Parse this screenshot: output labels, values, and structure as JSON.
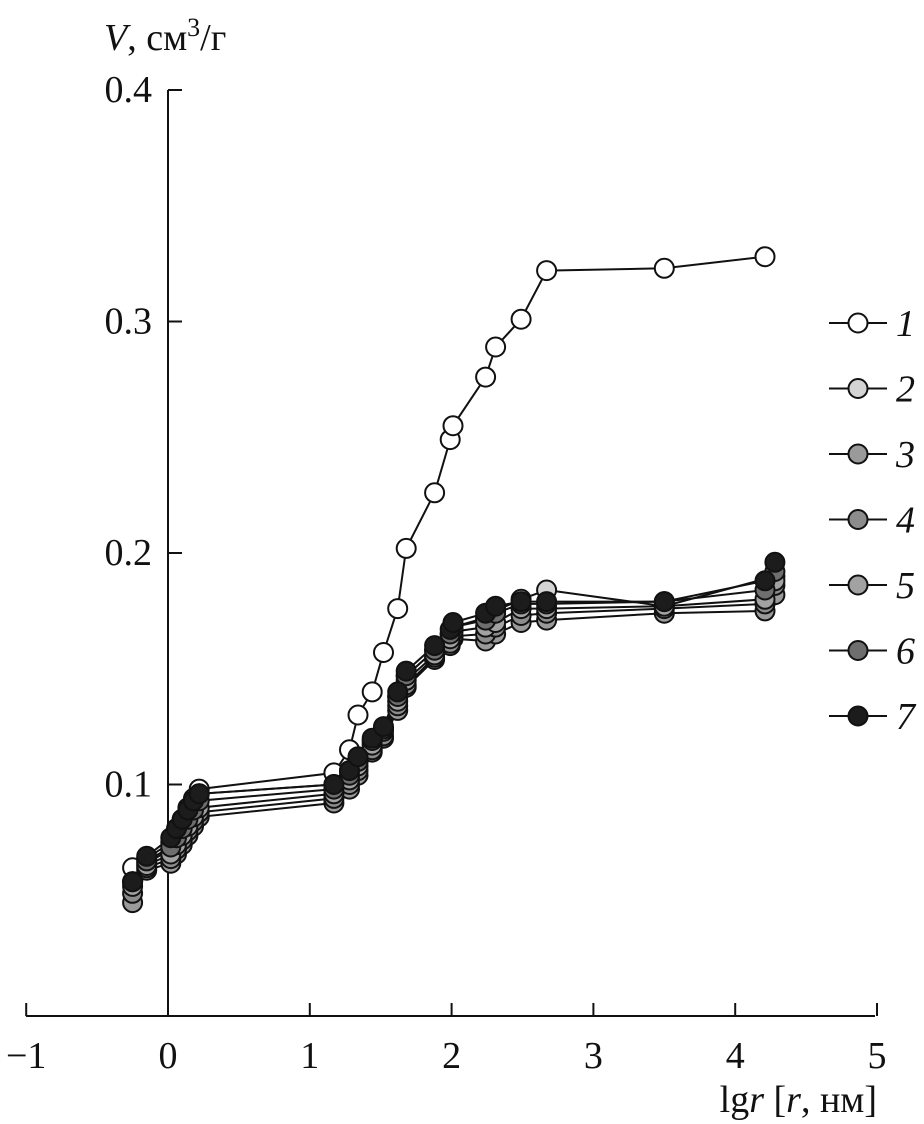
{
  "chart_data": {
    "type": "line",
    "y_axis_label": {
      "var": "V",
      "unit_prefix": ", см",
      "unit_exp": "3",
      "unit_suffix": "/г"
    },
    "x_axis_label": {
      "prefix": "lg",
      "var": "r",
      "bracket_open": " [",
      "var2": "r",
      "unit": ", нм]"
    },
    "xlim": [
      -1,
      5
    ],
    "ylim": [
      0.0,
      0.4
    ],
    "x_ticks": [
      -1,
      0,
      1,
      2,
      3,
      4,
      5
    ],
    "x_tick_labels": [
      "−1",
      "0",
      "1",
      "2",
      "3",
      "4",
      "5"
    ],
    "y_ticks": [
      0.1,
      0.2,
      0.3,
      0.4
    ],
    "y_tick_labels": [
      "0.1",
      "0.2",
      "0.3",
      "0.4"
    ],
    "legend_position": "right",
    "series": [
      {
        "name": "1",
        "fill": "#ffffff",
        "x": [
          -0.25,
          -0.15,
          0.02,
          0.06,
          0.1,
          0.14,
          0.18,
          0.22,
          1.17,
          1.28,
          1.34,
          1.44,
          1.52,
          1.62,
          1.68,
          1.88,
          1.99,
          2.01,
          2.24,
          2.31,
          2.49,
          2.67,
          3.5,
          4.21
        ],
        "y": [
          0.064,
          0.068,
          0.075,
          0.08,
          0.085,
          0.09,
          0.094,
          0.098,
          0.105,
          0.115,
          0.13,
          0.14,
          0.157,
          0.176,
          0.202,
          0.226,
          0.249,
          0.255,
          0.276,
          0.289,
          0.301,
          0.322,
          0.323,
          0.328
        ]
      },
      {
        "name": "2",
        "fill": "#d4d4d4",
        "x": [
          -0.25,
          -0.15,
          0.02,
          0.06,
          0.1,
          0.14,
          0.18,
          0.22,
          1.17,
          1.28,
          1.34,
          1.44,
          1.52,
          1.62,
          1.68,
          1.88,
          1.99,
          2.01,
          2.24,
          2.31,
          2.49,
          2.67,
          3.5,
          4.28
        ],
        "y": [
          0.058,
          0.066,
          0.072,
          0.078,
          0.083,
          0.088,
          0.092,
          0.096,
          0.1,
          0.106,
          0.11,
          0.118,
          0.124,
          0.138,
          0.147,
          0.158,
          0.165,
          0.168,
          0.172,
          0.175,
          0.18,
          0.184,
          0.177,
          0.19
        ]
      },
      {
        "name": "3",
        "fill": "#9a9a9a",
        "x": [
          -0.25,
          -0.15,
          0.02,
          0.06,
          0.1,
          0.14,
          0.18,
          0.22,
          1.17,
          1.28,
          1.34,
          1.44,
          1.52,
          1.62,
          1.68,
          1.88,
          1.99,
          2.01,
          2.24,
          2.31,
          2.49,
          2.67,
          3.5,
          4.21,
          4.28
        ],
        "y": [
          0.049,
          0.063,
          0.066,
          0.07,
          0.074,
          0.078,
          0.082,
          0.086,
          0.092,
          0.098,
          0.104,
          0.114,
          0.12,
          0.132,
          0.142,
          0.154,
          0.16,
          0.163,
          0.162,
          0.165,
          0.17,
          0.171,
          0.174,
          0.175,
          0.182
        ]
      },
      {
        "name": "4",
        "fill": "#8c8c8c",
        "x": [
          -0.25,
          -0.15,
          0.02,
          0.06,
          0.1,
          0.14,
          0.18,
          0.22,
          1.17,
          1.28,
          1.34,
          1.44,
          1.52,
          1.62,
          1.68,
          1.88,
          1.99,
          2.01,
          2.24,
          2.31,
          2.49,
          2.67,
          3.5,
          4.21,
          4.28
        ],
        "y": [
          0.053,
          0.064,
          0.068,
          0.072,
          0.076,
          0.08,
          0.084,
          0.088,
          0.094,
          0.1,
          0.106,
          0.115,
          0.121,
          0.134,
          0.143,
          0.155,
          0.161,
          0.164,
          0.165,
          0.168,
          0.173,
          0.174,
          0.176,
          0.178,
          0.186
        ]
      },
      {
        "name": "5",
        "fill": "#a2a2a2",
        "x": [
          -0.25,
          -0.15,
          0.02,
          0.06,
          0.1,
          0.14,
          0.18,
          0.22,
          1.17,
          1.28,
          1.34,
          1.44,
          1.52,
          1.62,
          1.68,
          1.88,
          1.99,
          2.01,
          2.24,
          2.31,
          2.49,
          2.67,
          3.5,
          4.21,
          4.28
        ],
        "y": [
          0.056,
          0.065,
          0.07,
          0.074,
          0.078,
          0.082,
          0.086,
          0.09,
          0.096,
          0.102,
          0.108,
          0.117,
          0.123,
          0.136,
          0.145,
          0.156,
          0.163,
          0.166,
          0.168,
          0.17,
          0.176,
          0.176,
          0.177,
          0.18,
          0.188
        ]
      },
      {
        "name": "6",
        "fill": "#6e6e6e",
        "x": [
          -0.25,
          -0.15,
          0.02,
          0.06,
          0.1,
          0.14,
          0.18,
          0.22,
          1.17,
          1.28,
          1.34,
          1.44,
          1.52,
          1.62,
          1.68,
          1.88,
          1.99,
          2.01,
          2.24,
          2.31,
          2.49,
          2.67,
          3.5,
          4.21,
          4.28
        ],
        "y": [
          0.058,
          0.067,
          0.073,
          0.077,
          0.081,
          0.085,
          0.089,
          0.093,
          0.098,
          0.104,
          0.11,
          0.119,
          0.124,
          0.138,
          0.147,
          0.158,
          0.165,
          0.168,
          0.171,
          0.174,
          0.178,
          0.178,
          0.179,
          0.184,
          0.192
        ]
      },
      {
        "name": "7",
        "fill": "#1c1c1c",
        "x": [
          -0.25,
          -0.15,
          0.02,
          0.06,
          0.1,
          0.14,
          0.18,
          0.22,
          1.17,
          1.28,
          1.34,
          1.44,
          1.52,
          1.62,
          1.68,
          1.88,
          1.99,
          2.01,
          2.24,
          2.31,
          2.49,
          2.67,
          3.5,
          4.21,
          4.28
        ],
        "y": [
          0.058,
          0.069,
          0.077,
          0.081,
          0.085,
          0.089,
          0.093,
          0.096,
          0.1,
          0.106,
          0.112,
          0.12,
          0.125,
          0.14,
          0.149,
          0.16,
          0.167,
          0.17,
          0.174,
          0.177,
          0.179,
          0.179,
          0.179,
          0.188,
          0.196
        ]
      }
    ]
  }
}
